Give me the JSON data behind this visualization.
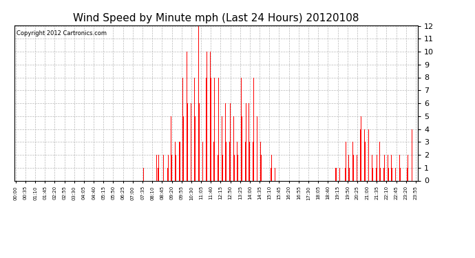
{
  "title": "Wind Speed by Minute mph (Last 24 Hours) 20120108",
  "copyright_text": "Copyright 2012 Cartronics.com",
  "ylim": [
    0.0,
    12.0
  ],
  "yticks": [
    0.0,
    1.0,
    2.0,
    3.0,
    4.0,
    5.0,
    6.0,
    7.0,
    8.0,
    9.0,
    10.0,
    11.0,
    12.0
  ],
  "bar_color": "#ff0000",
  "background_color": "#ffffff",
  "grid_color": "#b0b0b0",
  "title_fontsize": 11,
  "copyright_fontsize": 6,
  "xtick_fontsize": 5,
  "ytick_fontsize": 8,
  "x_tick_labels": [
    "00:00",
    "00:35",
    "01:10",
    "01:45",
    "02:20",
    "02:55",
    "03:30",
    "04:05",
    "04:40",
    "05:15",
    "05:50",
    "06:25",
    "07:00",
    "07:35",
    "08:10",
    "08:45",
    "09:20",
    "09:55",
    "10:30",
    "11:05",
    "11:40",
    "12:15",
    "12:50",
    "13:25",
    "14:00",
    "14:35",
    "15:10",
    "15:45",
    "16:20",
    "16:55",
    "17:30",
    "18:05",
    "18:40",
    "19:15",
    "19:50",
    "20:25",
    "21:00",
    "21:35",
    "22:10",
    "22:45",
    "23:20",
    "23:55"
  ],
  "wind_data": [
    0,
    0,
    0,
    0,
    0,
    0,
    0,
    0,
    0,
    0,
    0,
    0,
    0,
    0,
    0,
    0,
    0,
    0,
    0,
    0,
    0,
    0,
    0,
    0,
    0,
    0,
    0,
    0,
    0,
    0,
    0,
    0,
    0,
    0,
    0,
    0,
    0,
    0,
    0,
    0,
    0,
    0,
    0,
    0,
    0,
    0,
    0,
    0,
    0,
    0,
    0,
    0,
    0,
    0,
    0,
    0,
    0,
    0,
    0,
    0,
    0,
    0,
    0,
    0,
    0,
    0,
    0,
    0,
    0,
    0,
    0,
    0,
    0,
    0,
    0,
    0,
    0,
    0,
    0,
    0,
    0,
    0,
    0,
    0,
    0,
    0,
    0,
    0,
    0,
    0,
    0,
    0,
    0,
    0,
    0,
    0,
    0,
    0,
    0,
    0,
    0,
    0,
    0,
    0,
    0,
    0,
    0,
    0,
    0,
    0,
    0,
    0,
    0,
    0,
    0,
    0,
    0,
    0,
    0,
    0,
    0,
    0,
    0,
    0,
    0,
    0,
    0,
    0,
    0,
    0,
    0,
    0,
    0,
    0,
    0,
    0,
    0,
    0,
    0,
    0,
    0,
    0,
    0,
    0,
    0,
    0,
    0,
    0,
    0,
    0,
    0,
    0,
    0,
    0,
    0,
    0,
    0,
    0,
    0,
    0,
    0,
    0,
    0,
    0,
    0,
    0,
    0,
    0,
    0,
    0,
    0,
    0,
    0,
    0,
    0,
    0,
    0,
    0,
    0,
    0,
    0,
    0,
    0,
    0,
    0,
    0,
    0,
    0,
    0,
    0,
    0,
    0,
    0,
    0,
    0,
    0,
    0,
    0,
    0,
    0,
    0,
    0,
    0,
    0,
    0,
    0,
    0,
    0,
    0,
    0,
    0,
    0,
    0,
    0,
    0,
    0,
    0,
    0,
    0,
    0,
    0,
    0,
    0,
    0,
    0,
    0,
    0,
    0,
    0,
    0,
    0,
    0,
    0,
    0,
    0,
    0,
    0,
    0,
    0,
    0,
    0,
    0,
    0,
    0,
    0,
    0,
    0,
    0,
    0,
    0,
    0,
    0,
    0,
    0,
    0,
    0,
    0,
    0,
    0,
    0,
    0,
    0,
    0,
    0,
    0,
    0,
    0,
    0,
    0,
    0,
    0,
    0,
    0,
    0,
    0,
    0,
    0,
    0,
    0,
    0,
    0,
    0,
    0,
    0,
    0,
    0,
    0,
    0,
    0,
    0,
    0,
    0,
    0,
    0,
    0,
    0,
    0,
    0,
    0,
    0,
    0,
    0,
    0,
    0,
    0,
    0,
    0,
    0,
    0,
    0,
    0,
    0,
    0,
    0,
    0,
    0,
    0,
    0,
    0,
    0,
    0,
    0,
    0,
    0,
    0,
    0,
    0,
    0,
    0,
    0,
    0,
    0,
    0,
    0,
    0,
    0,
    0,
    0,
    0,
    0,
    0,
    0,
    0,
    0,
    0,
    0,
    0,
    0,
    0,
    0,
    0,
    0,
    0,
    0,
    0,
    0,
    0,
    0,
    0,
    0,
    0,
    0,
    0,
    0,
    0,
    0,
    0,
    0,
    0,
    0,
    0,
    0,
    0,
    0,
    0,
    0,
    0,
    0,
    0,
    0,
    0,
    0,
    0,
    0,
    0,
    0,
    0,
    0,
    0,
    0,
    0,
    0,
    0,
    0,
    0,
    0,
    0,
    0,
    0,
    0,
    0,
    0,
    0,
    0,
    0,
    0,
    0,
    0,
    0,
    0,
    0,
    0,
    0,
    0,
    0,
    0,
    0,
    0,
    0,
    0,
    0,
    0,
    0,
    0,
    0,
    0,
    0,
    0,
    0,
    0,
    0,
    0,
    0,
    0,
    0,
    0,
    0,
    0,
    0,
    0,
    0,
    0,
    0,
    0,
    0,
    0,
    0,
    0,
    0,
    0,
    0,
    0,
    0,
    0,
    0,
    0,
    0,
    0,
    0,
    1,
    0,
    0,
    0,
    0,
    0,
    0,
    0,
    0,
    0,
    0,
    0,
    0,
    0,
    0,
    0,
    0,
    0,
    0,
    0,
    0,
    0,
    0,
    0,
    0,
    0,
    0,
    0,
    0,
    0,
    0,
    0,
    0,
    0,
    0,
    0,
    0,
    0,
    0,
    0,
    0,
    0,
    0,
    0,
    0,
    0,
    0,
    2,
    0,
    0,
    0,
    0,
    1,
    0,
    2,
    0,
    0,
    2,
    0,
    0,
    2,
    0,
    3,
    0,
    0,
    3,
    0,
    0,
    2,
    0,
    0,
    2,
    0,
    1,
    0,
    0,
    0,
    0,
    0,
    0,
    0,
    0,
    0,
    0,
    0,
    0,
    1,
    0,
    0,
    2,
    0,
    0,
    1,
    0,
    0,
    2,
    0,
    0,
    5,
    0,
    0,
    2,
    0,
    0,
    3,
    0,
    0,
    5,
    0,
    0,
    5,
    0,
    0,
    3,
    0,
    0,
    2,
    0,
    0,
    3,
    0,
    0,
    5,
    0,
    0,
    8,
    0,
    0,
    3,
    0,
    0,
    3,
    0,
    0,
    5,
    0,
    0,
    3,
    0,
    0,
    8,
    0,
    0,
    5,
    0,
    0,
    3,
    0,
    0,
    8,
    0,
    0,
    5,
    0,
    0,
    10,
    0,
    0,
    6,
    0,
    0,
    8,
    0,
    0,
    5,
    0,
    0,
    3,
    0,
    0,
    6,
    0,
    0,
    8,
    0,
    0,
    3,
    0,
    0,
    10,
    0,
    0,
    8,
    0,
    0,
    5,
    0,
    0,
    3,
    0,
    0,
    8,
    0,
    0,
    5,
    0,
    0,
    12,
    0,
    0,
    6,
    0,
    0,
    8,
    0,
    0,
    10,
    0,
    0,
    5,
    0,
    0,
    3,
    0,
    0,
    8,
    0,
    0,
    5,
    0,
    0,
    11,
    0,
    0,
    8,
    0,
    0,
    10,
    0,
    0,
    6,
    0,
    0,
    8,
    0,
    0,
    5,
    0,
    0,
    10,
    0,
    0,
    8,
    0,
    0,
    6,
    0,
    0,
    5,
    0,
    0,
    3,
    0,
    0,
    8,
    0,
    0,
    6,
    0,
    0,
    5,
    0,
    0,
    3,
    0,
    0,
    2,
    0,
    0,
    8,
    0,
    0,
    5,
    0,
    0,
    6,
    0,
    0,
    3,
    0,
    0,
    5,
    0,
    0,
    2,
    0,
    0,
    8,
    0,
    0,
    5,
    0,
    0,
    6,
    0,
    0,
    3,
    0,
    0,
    10,
    0,
    0,
    8,
    0,
    0,
    5,
    0,
    0,
    3,
    0,
    0,
    6,
    0,
    0,
    5,
    0,
    0,
    8,
    0,
    0,
    3,
    0,
    0,
    5,
    0,
    0,
    2,
    0,
    0,
    8,
    0,
    0,
    5,
    0,
    0,
    3,
    0,
    0,
    2,
    0,
    0,
    5,
    0,
    0,
    3,
    0,
    0,
    6,
    0,
    0,
    8,
    0,
    0,
    5,
    0,
    0,
    3,
    0,
    0,
    2,
    0,
    0,
    5,
    0,
    0,
    3,
    0,
    0,
    6,
    0,
    0,
    8,
    0,
    0,
    5,
    0,
    0,
    6,
    0,
    0,
    3,
    0,
    0,
    8,
    0,
    0,
    5,
    0,
    0,
    6,
    0,
    0,
    3,
    0,
    0,
    8,
    0,
    0,
    5,
    0,
    0,
    3,
    0,
    0,
    2,
    0,
    0,
    5,
    0,
    0,
    3,
    0,
    0,
    2,
    0,
    0,
    1,
    0,
    0,
    3,
    0,
    0,
    2,
    0,
    0,
    1,
    0,
    0,
    0,
    0,
    0,
    1,
    0,
    0,
    0,
    0,
    0,
    0,
    0,
    0,
    0,
    0,
    0,
    0,
    0,
    0,
    0,
    0,
    0,
    0,
    0,
    0,
    0,
    0,
    0,
    0,
    1,
    0,
    0,
    2,
    0,
    0,
    1,
    0,
    0,
    3,
    0,
    0,
    2,
    0,
    0,
    1,
    0,
    0,
    0,
    0,
    0,
    2,
    0,
    0,
    1,
    0,
    0,
    0,
    0,
    0,
    0,
    0,
    0,
    0,
    0,
    0,
    1,
    0,
    0,
    0,
    0,
    0,
    0,
    0,
    0,
    0,
    0,
    0,
    0,
    0,
    0,
    0,
    0,
    0,
    0,
    0,
    0,
    0,
    0,
    0,
    0,
    0,
    0,
    0,
    0,
    0,
    0,
    0,
    0,
    0,
    0,
    0,
    0,
    0,
    0,
    0,
    0,
    0,
    0,
    0,
    0,
    0,
    0,
    0,
    0,
    0,
    0,
    0,
    0,
    0,
    0,
    0,
    0,
    0,
    0,
    0,
    0,
    0,
    0,
    0,
    0,
    0,
    0,
    0,
    0,
    0,
    0,
    0,
    0,
    0,
    0,
    0,
    0,
    0,
    0,
    0,
    0,
    0,
    0,
    0,
    0,
    0,
    0,
    0,
    0,
    0,
    0,
    0,
    0,
    0,
    0,
    0,
    0,
    0,
    0,
    0,
    0,
    0,
    0,
    0,
    0,
    0,
    0,
    0,
    0,
    0,
    0,
    0,
    0,
    0,
    0,
    0,
    0,
    0,
    0,
    0,
    0,
    0,
    0,
    0,
    0,
    0,
    0,
    0,
    0,
    0,
    0,
    0,
    0,
    0,
    0,
    0,
    0,
    0,
    0,
    0,
    0,
    0,
    0,
    0,
    0,
    0,
    0,
    0,
    0,
    0,
    0,
    0,
    0,
    0,
    0,
    0,
    0,
    0,
    0,
    0,
    0,
    0,
    0,
    0,
    0,
    0,
    0,
    0,
    0,
    0,
    0,
    0,
    0,
    0,
    0,
    0,
    0,
    0,
    0,
    0,
    0,
    0,
    0,
    0,
    0,
    0,
    0,
    0,
    0,
    0,
    0,
    0,
    0,
    1,
    0,
    0,
    1,
    0,
    0,
    1,
    0,
    0,
    2,
    0,
    0,
    1,
    0,
    0,
    0,
    0,
    0,
    1,
    0,
    0,
    0,
    0,
    0,
    0,
    0,
    0,
    0,
    0,
    0,
    0,
    0,
    1,
    0,
    0,
    2,
    0,
    0,
    1,
    0,
    0,
    3,
    0,
    0,
    2,
    0,
    0,
    1,
    0,
    0,
    2,
    0,
    0,
    1,
    0,
    0,
    3,
    0,
    0,
    2,
    0,
    0,
    1,
    0,
    0,
    3,
    0,
    0,
    2,
    0,
    0,
    5,
    0,
    0,
    4,
    0,
    0,
    3,
    0,
    0,
    2,
    0,
    0,
    1,
    0,
    0,
    2,
    0,
    0,
    3,
    0,
    0,
    4,
    0,
    0,
    5,
    0,
    0,
    4,
    0,
    0,
    3,
    0,
    0,
    5,
    0,
    0,
    4,
    0,
    0,
    3,
    0,
    0,
    2,
    0,
    0,
    4,
    0,
    0,
    5,
    0,
    0,
    4,
    0,
    0,
    5,
    0,
    0,
    4,
    0,
    0,
    3,
    0,
    0,
    2,
    0,
    0,
    1,
    0,
    0,
    2,
    0,
    0,
    3,
    0,
    0,
    2,
    0,
    0,
    1,
    0,
    0,
    2,
    0,
    0,
    3,
    0,
    0,
    2,
    0,
    0,
    3,
    0,
    0,
    1,
    0,
    0,
    2,
    0,
    0,
    3,
    0,
    0,
    2,
    0,
    0,
    1,
    0,
    0,
    2,
    0,
    0,
    1,
    0,
    0,
    0,
    0,
    0,
    1,
    0,
    0,
    2,
    0,
    0,
    1,
    0,
    0,
    0,
    0,
    0,
    1,
    0,
    0,
    2,
    0,
    0,
    1,
    0,
    0,
    2,
    0,
    0,
    1,
    0,
    0,
    0,
    0,
    0,
    1,
    0,
    0,
    0,
    0,
    0,
    1,
    0,
    0,
    2,
    0,
    0,
    1,
    0,
    0,
    2,
    0,
    0,
    1,
    0,
    0,
    0,
    0,
    0,
    1,
    0,
    0,
    0,
    0,
    0,
    0,
    0,
    0,
    0,
    0,
    0,
    1,
    0,
    0,
    2,
    0,
    0,
    1,
    0,
    0,
    2,
    0,
    0,
    1,
    0,
    0,
    2,
    0,
    0,
    1,
    0,
    0,
    0,
    0,
    0,
    4,
    0,
    0,
    2,
    0,
    0,
    4,
    0
  ]
}
